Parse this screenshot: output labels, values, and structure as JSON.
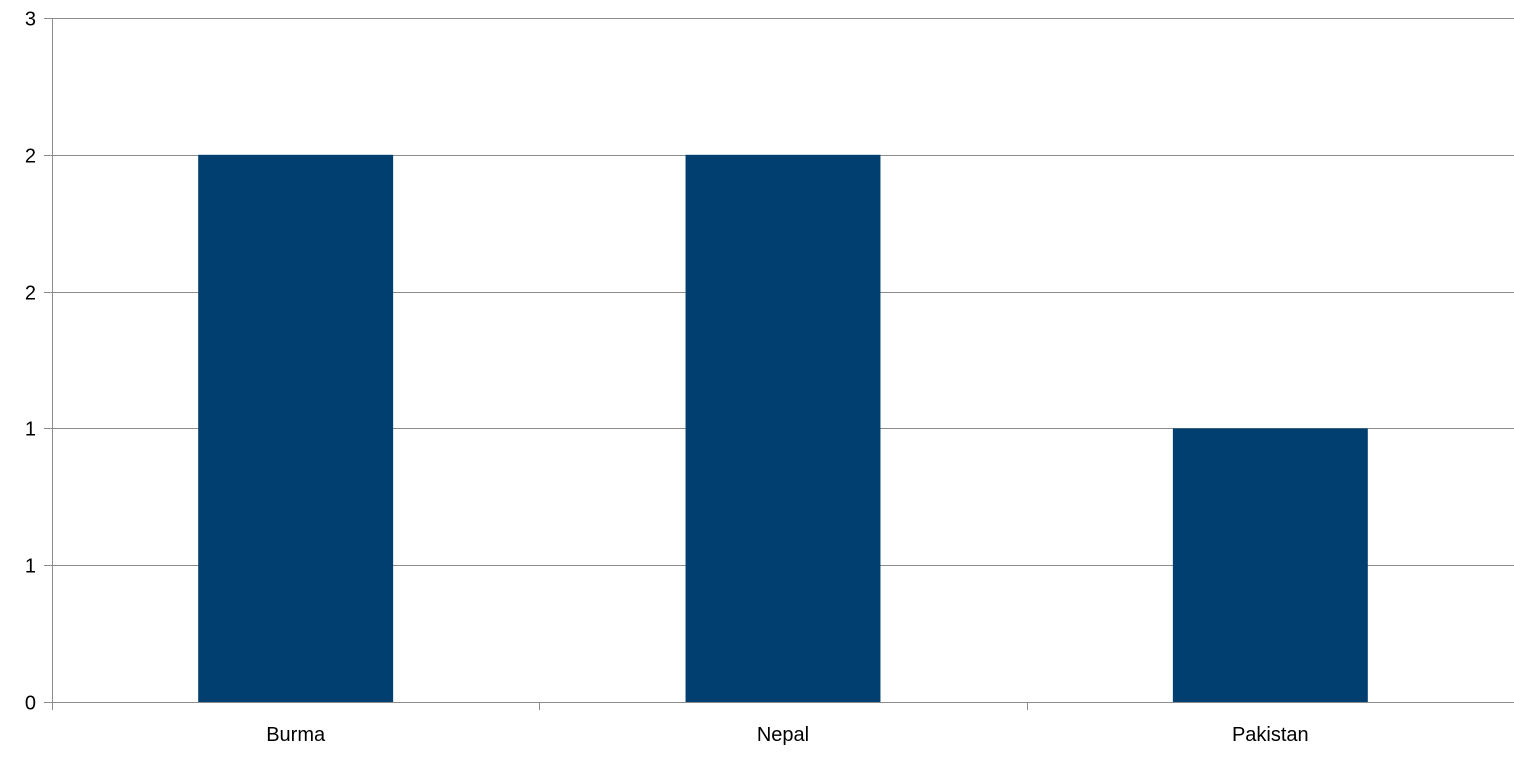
{
  "colors": {
    "bar": "#003F6F",
    "grid": "#8C8C8C",
    "axis": "#8C8C8C",
    "text": "#000000",
    "background": "#FFFFFF"
  },
  "chart_data": {
    "type": "bar",
    "categories": [
      "Burma",
      "Nepal",
      "Pakistan"
    ],
    "values": [
      2,
      2,
      1
    ],
    "ylim": [
      0,
      2.5
    ],
    "y_ticks": [
      0,
      0.5,
      1,
      1.5,
      2,
      2.5
    ],
    "y_tick_labels": [
      "0",
      "1",
      "1",
      "2",
      "2",
      "3"
    ],
    "grid": true,
    "legend": "none",
    "title": "",
    "xlabel": "",
    "ylabel": ""
  }
}
